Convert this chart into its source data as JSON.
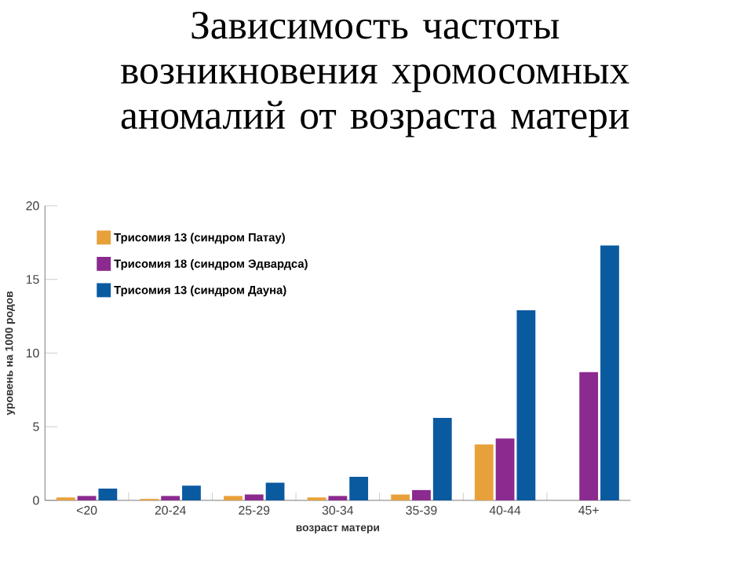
{
  "chart_data": {
    "type": "bar",
    "title": "Зависимость частоты возникновения хромосомных аномалий от возраста матери",
    "xlabel": "возраст матери",
    "ylabel": "уровень на 1000 родов",
    "categories": [
      "<20",
      "20-24",
      "25-29",
      "30-34",
      "35-39",
      "40-44",
      "45+"
    ],
    "series": [
      {
        "name": "Трисомия 13 (синдром Патау)",
        "color": "#e8a13a",
        "values": [
          0.2,
          0.1,
          0.3,
          0.2,
          0.4,
          3.8,
          null
        ]
      },
      {
        "name": "Трисомия 18 (синдром Эдвардса)",
        "color": "#8b2a8f",
        "values": [
          0.3,
          0.3,
          0.4,
          0.3,
          0.7,
          4.2,
          8.7
        ]
      },
      {
        "name": "Трисомия 13 (синдром Дауна)",
        "color": "#0a5aa0",
        "values": [
          0.8,
          1.0,
          1.2,
          1.6,
          5.6,
          12.9,
          17.3
        ]
      }
    ],
    "ylim": [
      0,
      20
    ],
    "yticks": [
      0,
      5,
      10,
      15,
      20
    ],
    "grid": false,
    "legend": "top left"
  }
}
